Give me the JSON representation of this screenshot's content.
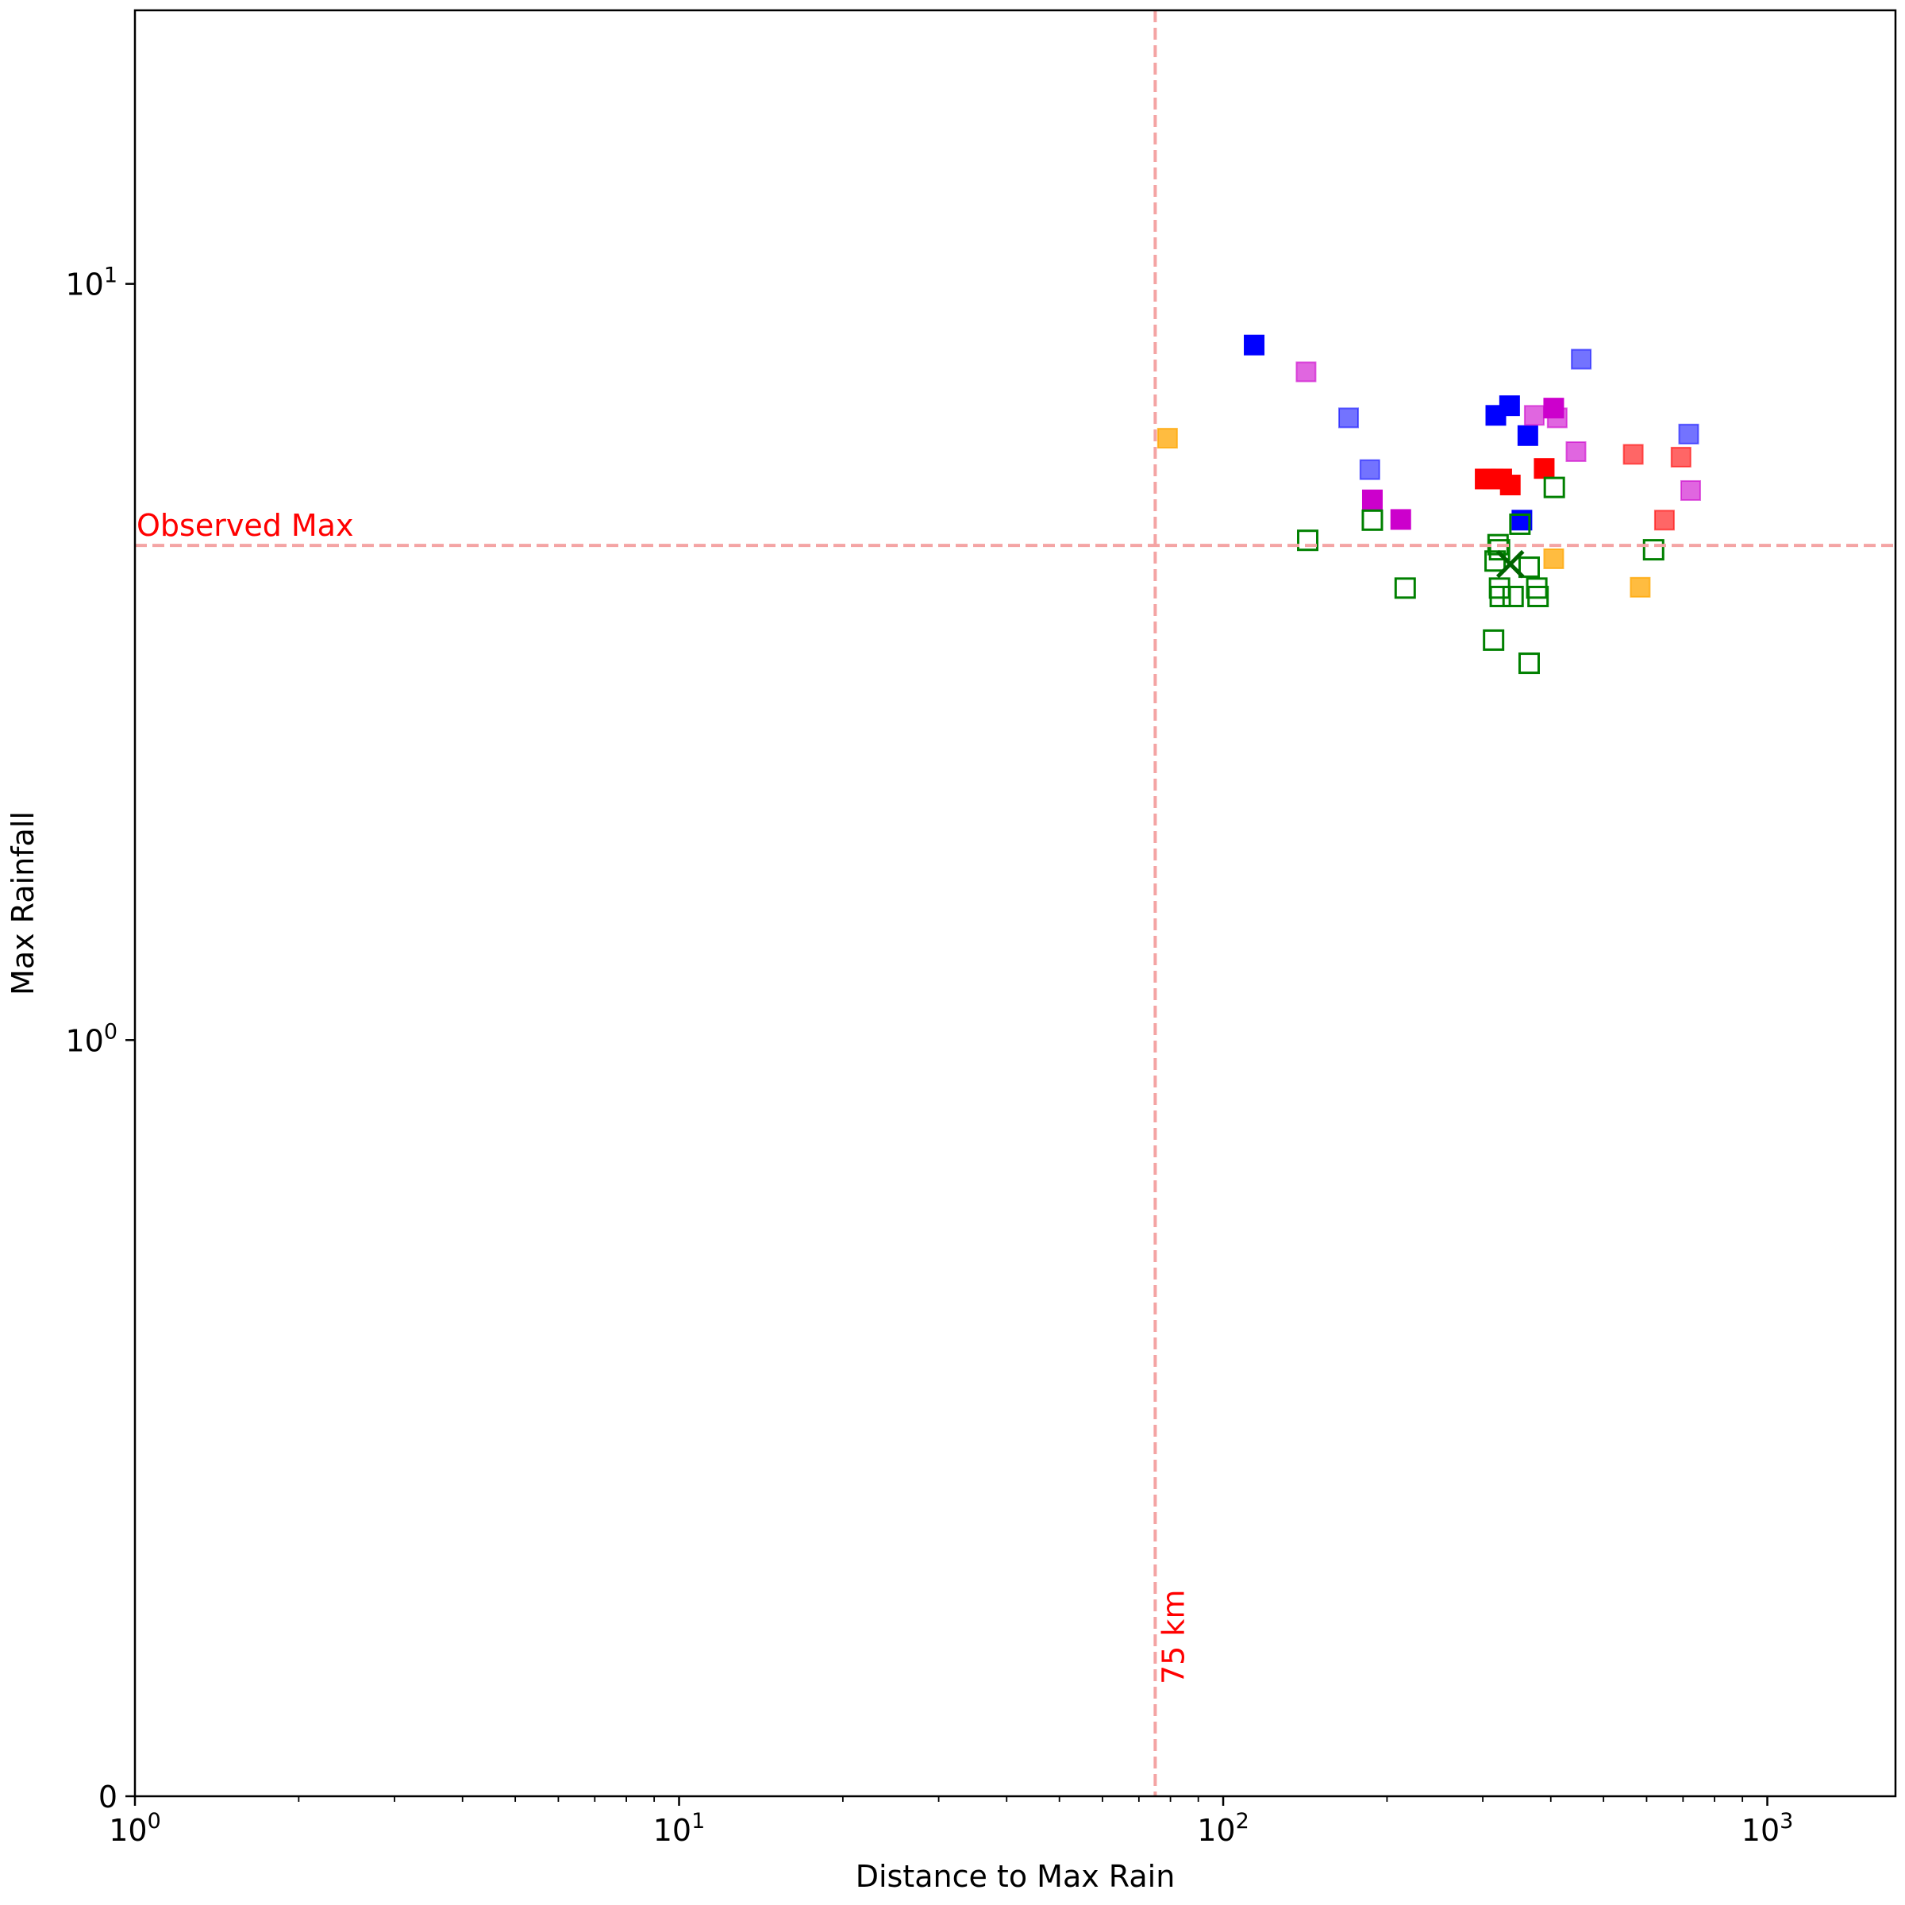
{
  "chart_data": {
    "type": "scatter",
    "title": "",
    "xlabel": "Distance to Max Rain",
    "ylabel": "Max Rainfall",
    "xscale": "log",
    "yscale": "symlog",
    "xlim": [
      1,
      1720
    ],
    "ylim": [
      0,
      23
    ],
    "grid": false,
    "x_ticks": [
      {
        "value": 1,
        "label": "10",
        "exp": "0"
      },
      {
        "value": 10,
        "label": "10",
        "exp": "1"
      },
      {
        "value": 100,
        "label": "10",
        "exp": "2"
      },
      {
        "value": 1000,
        "label": "10",
        "exp": "3"
      }
    ],
    "y_ticks": [
      {
        "value": 0,
        "label": "0",
        "exp": ""
      },
      {
        "value": 1,
        "label": "10",
        "exp": "0"
      },
      {
        "value": 10,
        "label": "10",
        "exp": "1"
      }
    ],
    "reference_lines": [
      {
        "orientation": "vertical",
        "value": 75,
        "label": "75 km",
        "color": "#f4a4a4",
        "label_color": "#ff0000"
      },
      {
        "orientation": "horizontal",
        "value": 4.51,
        "label": "Observed Max",
        "color": "#f4a4a4",
        "label_color": "#ff0000"
      }
    ],
    "series": [
      {
        "color": "#0000ff",
        "alpha": 1.0,
        "filled": true,
        "points": [
          [
            114,
            8.3
          ],
          [
            317,
            6.7
          ],
          [
            336,
            6.9
          ],
          [
            363,
            6.3
          ],
          [
            354,
            4.87
          ]
        ]
      },
      {
        "color": "#0000ff",
        "alpha": 0.55,
        "filled": true,
        "points": [
          [
            170,
            6.65
          ],
          [
            186,
            5.68
          ],
          [
            455,
            7.95
          ],
          [
            717,
            6.33
          ]
        ]
      },
      {
        "color": "#cc00cc",
        "alpha": 1.0,
        "filled": true,
        "points": [
          [
            188,
            5.18
          ],
          [
            212,
            4.88
          ],
          [
            405,
            6.85
          ]
        ]
      },
      {
        "color": "#cc00cc",
        "alpha": 0.6,
        "filled": true,
        "points": [
          [
            142,
            7.65
          ],
          [
            373,
            6.7
          ],
          [
            411,
            6.65
          ],
          [
            445,
            6.0
          ],
          [
            723,
            5.33
          ]
        ]
      },
      {
        "color": "#ff0000",
        "alpha": 1.0,
        "filled": true,
        "points": [
          [
            303,
            5.52
          ],
          [
            313,
            5.52
          ],
          [
            325,
            5.52
          ],
          [
            337,
            5.42
          ],
          [
            389,
            5.7
          ]
        ]
      },
      {
        "color": "#ff0000",
        "alpha": 0.6,
        "filled": true,
        "points": [
          [
            567,
            5.95
          ],
          [
            694,
            5.9
          ],
          [
            647,
            4.87
          ]
        ]
      },
      {
        "color": "#ffa500",
        "alpha": 0.75,
        "filled": true,
        "points": [
          [
            79,
            6.25
          ],
          [
            405,
            4.33
          ],
          [
            584,
            3.97
          ]
        ]
      },
      {
        "color": "#008000",
        "alpha": 1.0,
        "filled": false,
        "points": [
          [
            143,
            4.58
          ],
          [
            188,
            4.87
          ],
          [
            216,
            3.96
          ],
          [
            406,
            5.38
          ],
          [
            320,
            4.52
          ],
          [
            322,
            4.45
          ],
          [
            316,
            4.3
          ],
          [
            322,
            3.96
          ],
          [
            323,
            3.86
          ],
          [
            341,
            3.86
          ],
          [
            377,
            3.96
          ],
          [
            379,
            3.86
          ],
          [
            351,
            4.81
          ],
          [
            365,
            4.22
          ],
          [
            618,
            4.45
          ],
          [
            314,
            3.38
          ],
          [
            365,
            3.15
          ]
        ]
      }
    ],
    "mean_marker": {
      "x": 337,
      "y": 4.26,
      "color": "#006400",
      "label": ""
    }
  }
}
